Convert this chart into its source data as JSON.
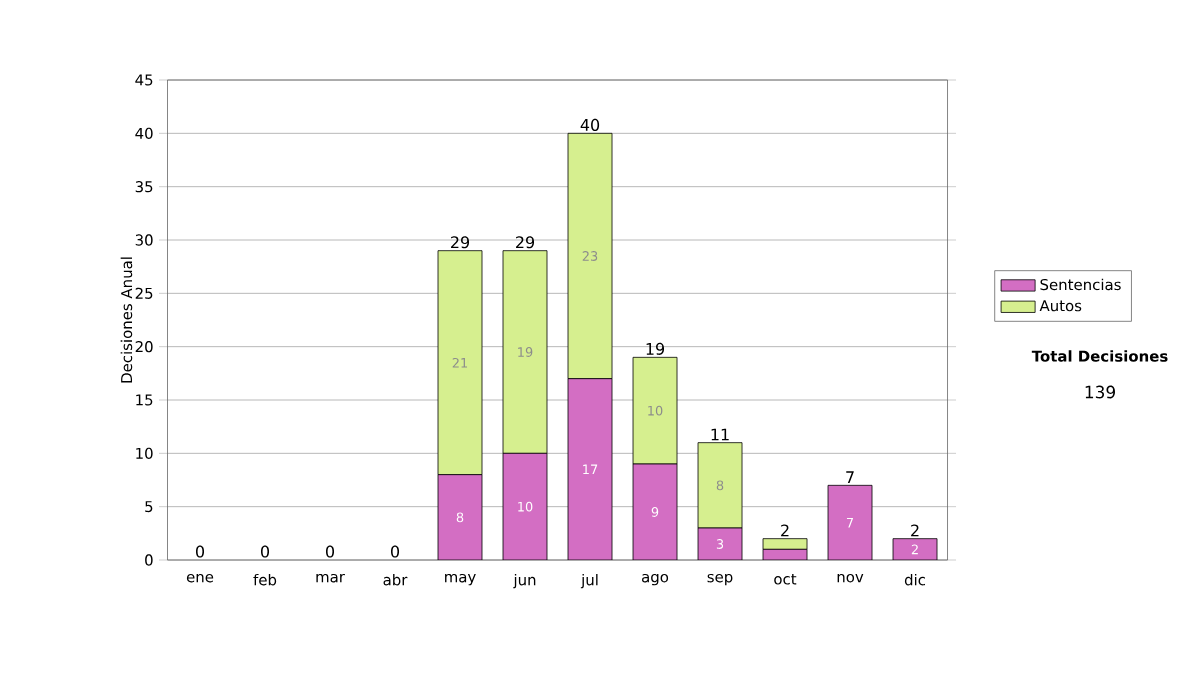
{
  "chart_data": {
    "type": "bar",
    "stacked": true,
    "ylabel": "Decisiones Anual",
    "categories": [
      "ene",
      "feb",
      "mar",
      "abr",
      "may",
      "jun",
      "jul",
      "ago",
      "sep",
      "oct",
      "nov",
      "dic"
    ],
    "series": [
      {
        "name": "Sentencias",
        "color": "#d36ec3",
        "values": [
          0,
          0,
          0,
          0,
          8,
          10,
          17,
          9,
          3,
          1,
          7,
          2
        ],
        "value_labels": [
          null,
          null,
          null,
          null,
          "8",
          "10",
          "17",
          "9",
          "3",
          null,
          "7",
          "2"
        ]
      },
      {
        "name": "Autos",
        "color": "#d6ef8f",
        "values": [
          0,
          0,
          0,
          0,
          21,
          19,
          23,
          10,
          8,
          1,
          0,
          0
        ],
        "value_labels": [
          null,
          null,
          null,
          null,
          "21",
          "19",
          "23",
          "10",
          "8",
          null,
          null,
          null
        ]
      }
    ],
    "totals": [
      "0",
      "0",
      "0",
      "0",
      "29",
      "29",
      "40",
      "19",
      "11",
      "2",
      "7",
      "2"
    ],
    "ylim": [
      0,
      45
    ],
    "yticks": [
      0,
      5,
      10,
      15,
      20,
      25,
      30,
      35,
      40,
      45
    ],
    "grid": "y",
    "legend": "right",
    "annotations": [
      "Total Decisiones",
      "139"
    ]
  }
}
